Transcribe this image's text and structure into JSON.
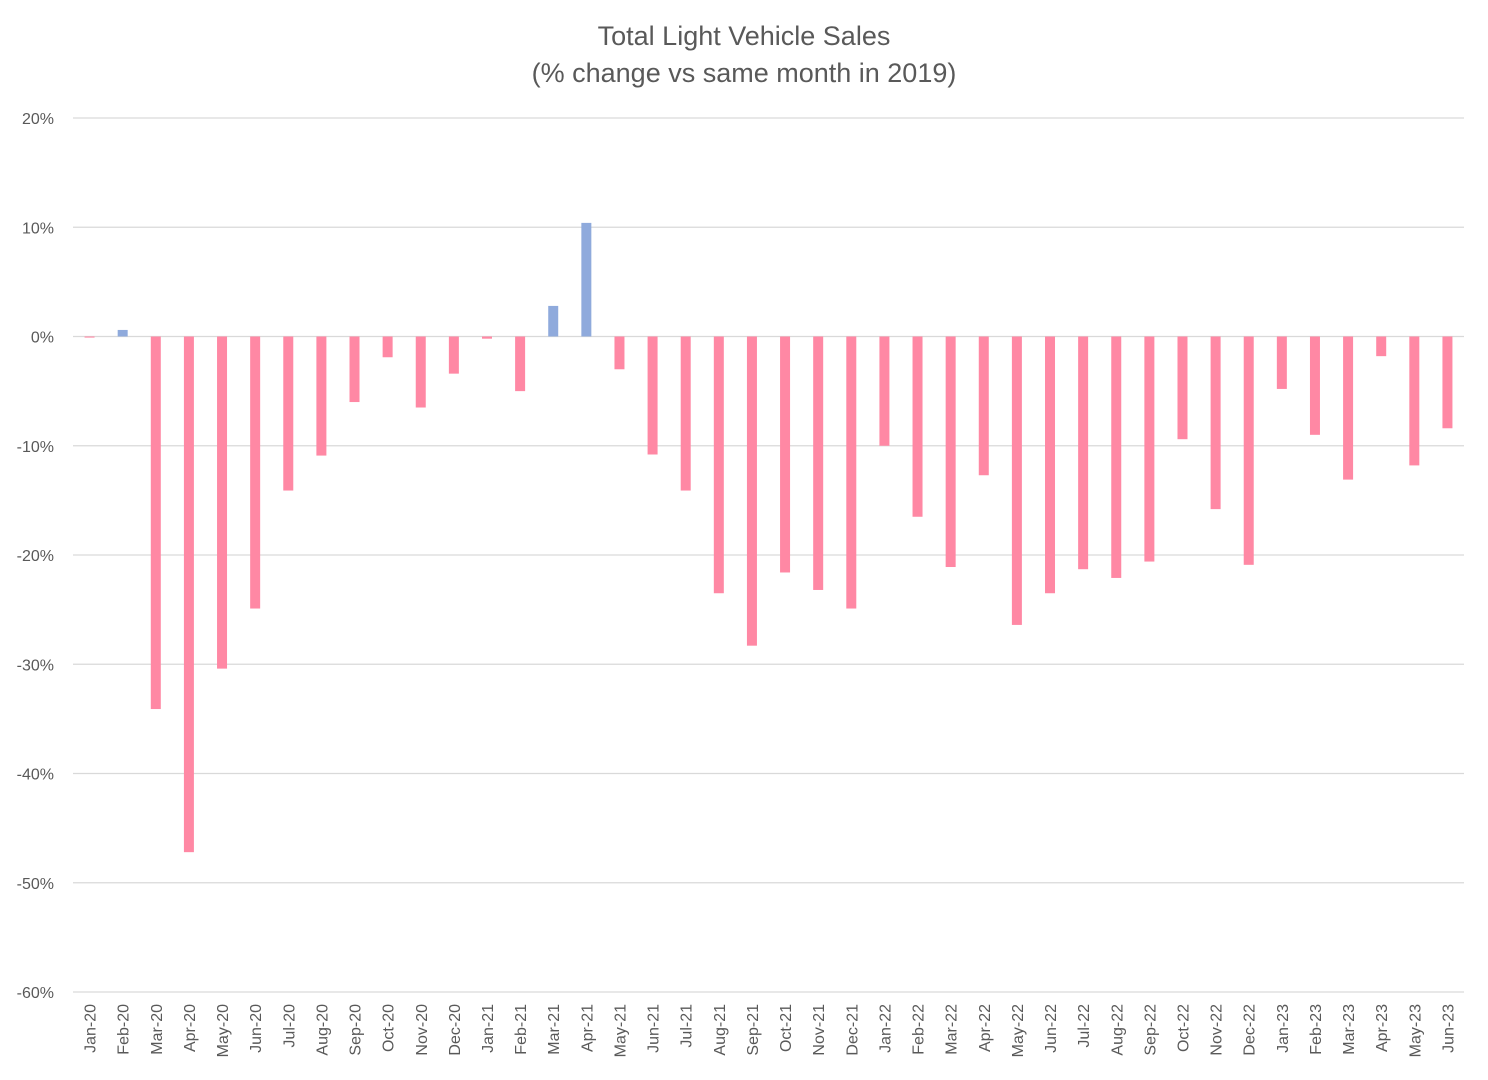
{
  "chart_data": {
    "type": "bar",
    "title": "Total Light Vehicle Sales",
    "subtitle": "(% change vs same month in 2019)",
    "xlabel": "",
    "ylabel": "",
    "ylim": [
      -60,
      20
    ],
    "yticks": [
      20,
      10,
      0,
      -10,
      -20,
      -30,
      -40,
      -50,
      -60
    ],
    "ytick_labels": [
      "20%",
      "10%",
      "0%",
      "-10%",
      "-20%",
      "-30%",
      "-40%",
      "-50%",
      "-60%"
    ],
    "grid": true,
    "legend": "none",
    "colors": {
      "positive": "#8faadc",
      "negative": "#ff88a4",
      "grid": "#d9d9d9"
    },
    "categories": [
      "Jan-20",
      "Feb-20",
      "Mar-20",
      "Apr-20",
      "May-20",
      "Jun-20",
      "Jul-20",
      "Aug-20",
      "Sep-20",
      "Oct-20",
      "Nov-20",
      "Dec-20",
      "Jan-21",
      "Feb-21",
      "Mar-21",
      "Apr-21",
      "May-21",
      "Jun-21",
      "Jul-21",
      "Aug-21",
      "Sep-21",
      "Oct-21",
      "Nov-21",
      "Dec-21",
      "Jan-22",
      "Feb-22",
      "Mar-22",
      "Apr-22",
      "May-22",
      "Jun-22",
      "Jul-22",
      "Aug-22",
      "Sep-22",
      "Oct-22",
      "Nov-22",
      "Dec-22",
      "Jan-23",
      "Feb-23",
      "Mar-23",
      "Apr-23",
      "May-23",
      "Jun-23"
    ],
    "values": [
      -0.1,
      0.6,
      -34.1,
      -47.2,
      -30.4,
      -24.9,
      -14.1,
      -10.9,
      -6.0,
      -1.9,
      -6.5,
      -3.4,
      -0.2,
      -5.0,
      2.8,
      10.4,
      -3.0,
      -10.8,
      -14.1,
      -23.5,
      -28.3,
      -21.6,
      -23.2,
      -24.9,
      -10.0,
      -16.5,
      -21.1,
      -12.7,
      -26.4,
      -23.5,
      -21.3,
      -22.1,
      -20.6,
      -9.4,
      -15.8,
      -20.9,
      -4.8,
      -9.0,
      -13.1,
      -1.8,
      -11.8,
      -8.4
    ]
  }
}
